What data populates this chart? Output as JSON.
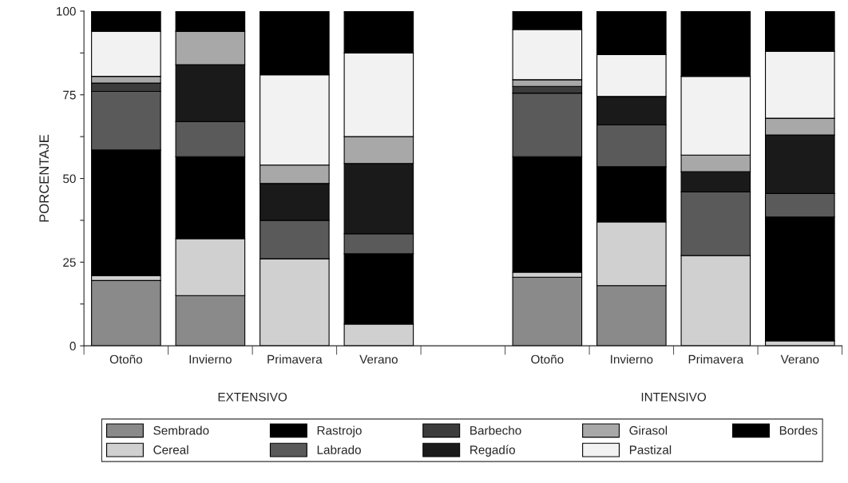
{
  "chart_data": {
    "type": "bar",
    "stacked": true,
    "ylabel": "PORCENTAJE",
    "categories": [
      "Otoño",
      "Invierno",
      "Primavera",
      "Verano",
      null,
      "Otoño",
      "Invierno",
      "Primavera",
      "Verano"
    ],
    "series": [
      {
        "name": "Sembrado",
        "color": "#8a8a8a",
        "values": [
          19.5,
          15,
          0,
          0,
          null,
          20.5,
          18,
          0,
          0
        ]
      },
      {
        "name": "Cereal",
        "color": "#d0d0d0",
        "values": [
          1.5,
          17,
          26,
          6.5,
          null,
          1.5,
          19,
          27,
          1.5
        ]
      },
      {
        "name": "Rastrojo",
        "color": "#000000",
        "values": [
          37.5,
          24.5,
          0,
          21,
          null,
          34.5,
          16.5,
          0,
          37
        ]
      },
      {
        "name": "Labrado",
        "color": "#5a5a5a",
        "values": [
          17.5,
          10.5,
          11.5,
          6,
          null,
          19,
          12.5,
          19,
          7
        ]
      },
      {
        "name": "Barbecho",
        "color": "#3c3c3c",
        "values": [
          2.5,
          0,
          0,
          0,
          null,
          2,
          0,
          0,
          0
        ]
      },
      {
        "name": "Regadío",
        "color": "#1a1a1a",
        "values": [
          0,
          17,
          11,
          21,
          null,
          0,
          8.5,
          6,
          17.5
        ]
      },
      {
        "name": "Girasol",
        "color": "#a8a8a8",
        "values": [
          2,
          10,
          5.5,
          8,
          null,
          2,
          0,
          5,
          5
        ]
      },
      {
        "name": "Pastizal",
        "color": "#f2f2f2",
        "values": [
          13.5,
          0,
          27,
          25,
          null,
          15,
          12.5,
          23.5,
          20
        ]
      },
      {
        "name": "Bordes",
        "color": "#000000",
        "values": [
          6,
          6,
          19,
          12.5,
          null,
          5.5,
          13,
          19.5,
          12
        ]
      }
    ],
    "ylim": [
      0,
      100
    ],
    "yticks": [
      0,
      {
        "value": 12.5,
        "label": null
      },
      25,
      {
        "value": 37.5,
        "label": null
      },
      50,
      {
        "value": 62.5,
        "label": null
      },
      75,
      {
        "value": 87.5,
        "label": null
      },
      100
    ],
    "annotations": [
      "EXTENSIVO",
      "INTENSIVO"
    ],
    "legend": "bottom",
    "grid": false
  }
}
